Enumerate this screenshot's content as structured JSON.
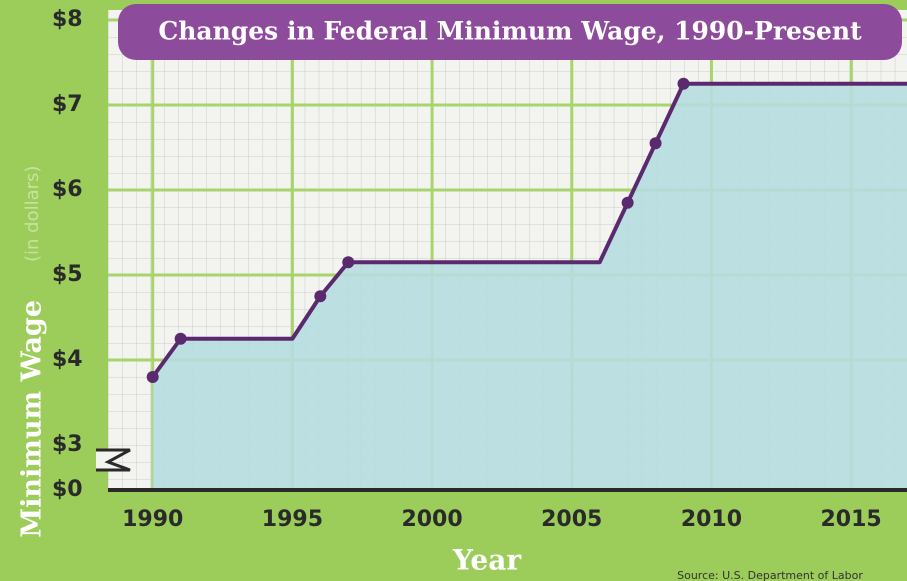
{
  "chart_data": {
    "type": "area-line",
    "title": "Changes in Federal Minimum Wage, 1990-Present",
    "xlabel": "Year",
    "ylabel": "Minimum Wage",
    "ylabel_unit": "(in dollars)",
    "source": "Source: U.S. Department of Labor",
    "x": [
      1990,
      1991,
      1995,
      1996,
      1997,
      2006,
      2007,
      2008,
      2009,
      2017
    ],
    "series": [
      {
        "color": "#5b2a6e",
        "values": [
          3.8,
          4.25,
          4.25,
          4.75,
          5.15,
          5.15,
          5.85,
          6.55,
          7.25,
          7.25
        ]
      }
    ],
    "fill_color": "#b6dde0",
    "xlim": [
      1988.4,
      2017
    ],
    "xticks": [
      1990,
      1995,
      2000,
      2005,
      2010,
      2015
    ],
    "ylim": [
      0,
      8
    ],
    "y_break": [
      0,
      3
    ],
    "yticks": [
      {
        "value": 0,
        "label": "$0"
      },
      {
        "value": 3,
        "label": "$3"
      },
      {
        "value": 4,
        "label": "$4"
      },
      {
        "value": 5,
        "label": "$5"
      },
      {
        "value": 6,
        "label": "$6"
      },
      {
        "value": 7,
        "label": "$7"
      },
      {
        "value": 8,
        "label": "$8"
      }
    ],
    "grid": true
  }
}
